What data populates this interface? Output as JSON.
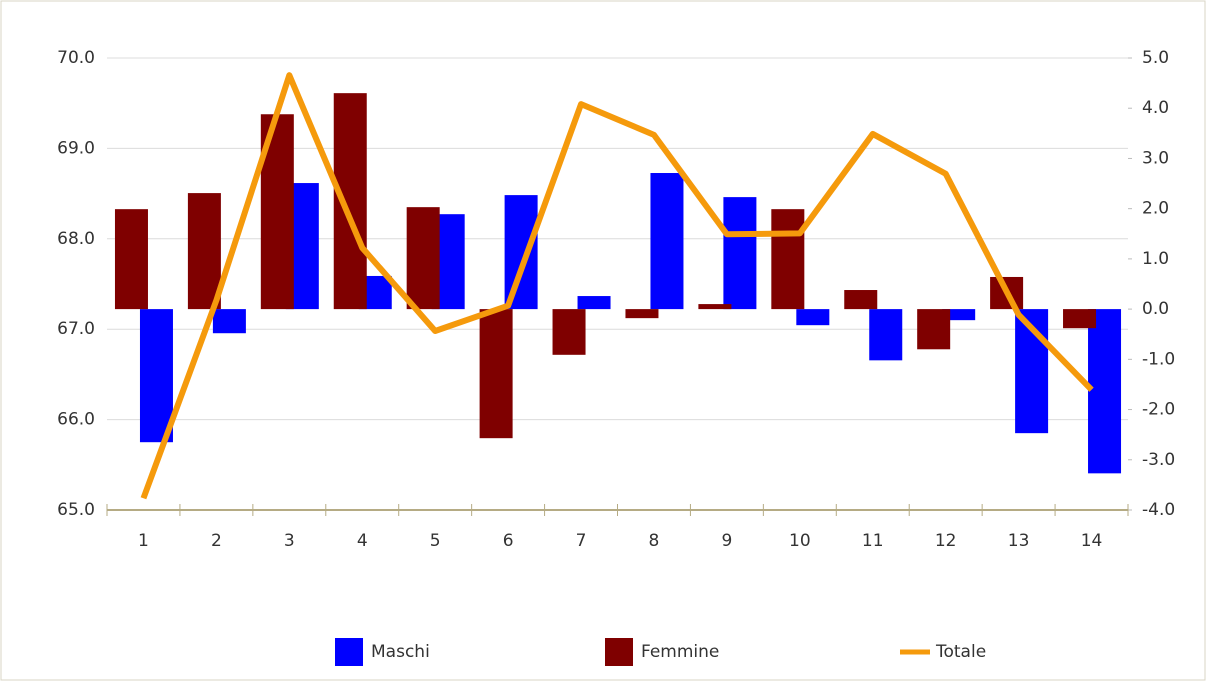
{
  "chart_data": {
    "type": "bar-line",
    "categories": [
      "1",
      "2",
      "3",
      "4",
      "5",
      "6",
      "7",
      "8",
      "9",
      "10",
      "11",
      "12",
      "13",
      "14"
    ],
    "series": [
      {
        "name": "Maschi",
        "color": "#0000ff",
        "type": "bar",
        "axis": "y2",
        "values": [
          -2.65,
          -0.48,
          2.51,
          0.66,
          1.89,
          2.27,
          0.26,
          2.71,
          2.23,
          -0.32,
          -1.02,
          -0.22,
          -2.47,
          -3.27
        ]
      },
      {
        "name": "Femmine",
        "color": "#7f0000",
        "type": "bar",
        "axis": "y2",
        "values": [
          1.99,
          2.31,
          3.88,
          4.3,
          2.03,
          -2.57,
          -0.91,
          -0.18,
          0.1,
          1.99,
          0.38,
          -0.8,
          0.64,
          -0.38
        ]
      },
      {
        "name": "Totale",
        "color": "#f59a0c",
        "type": "line",
        "values": [
          65.13,
          67.32,
          69.81,
          67.9,
          66.98,
          67.26,
          69.49,
          69.15,
          68.05,
          68.06,
          69.16,
          68.72,
          67.16,
          66.33
        ]
      }
    ],
    "ylim": [
      65,
      70
    ],
    "yticks": [
      {
        "value": 65,
        "label": "65.0"
      },
      {
        "value": 66,
        "label": "66.0"
      },
      {
        "value": 67,
        "label": "67.0"
      },
      {
        "value": 68,
        "label": "68.0"
      },
      {
        "value": 69,
        "label": "69.0"
      },
      {
        "value": 70,
        "label": "70.0"
      }
    ],
    "y2lim": [
      -4,
      5
    ],
    "y2ticks": [
      {
        "value": -4,
        "label": "-4.0"
      },
      {
        "value": -3,
        "label": "-3.0"
      },
      {
        "value": -2,
        "label": "-2.0"
      },
      {
        "value": -1,
        "label": "-1.0"
      },
      {
        "value": 0,
        "label": "0.0"
      },
      {
        "value": 1,
        "label": "1.0"
      },
      {
        "value": 2,
        "label": "2.0"
      },
      {
        "value": 3,
        "label": "3.0"
      },
      {
        "value": 4,
        "label": "4.0"
      },
      {
        "value": 5,
        "label": "5.0"
      }
    ],
    "grid": true
  }
}
